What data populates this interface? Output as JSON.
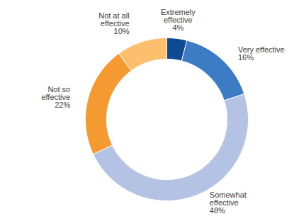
{
  "chart_data": {
    "type": "donut",
    "categories": [
      "Extremely effective",
      "Very effective",
      "Somewhat effective",
      "Not so effective",
      "Not at all effective"
    ],
    "values": [
      4,
      16,
      48,
      22,
      10
    ],
    "value_labels": [
      "4%",
      "16%",
      "48%",
      "22%",
      "10%"
    ],
    "colors": [
      "#0d4a91",
      "#3b7cc4",
      "#b4c2e3",
      "#f59a30",
      "#fdbe6e"
    ],
    "data_labels": true
  }
}
